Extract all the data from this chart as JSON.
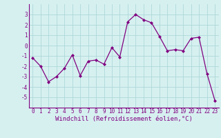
{
  "x": [
    0,
    1,
    2,
    3,
    4,
    5,
    6,
    7,
    8,
    9,
    10,
    11,
    12,
    13,
    14,
    15,
    16,
    17,
    18,
    19,
    20,
    21,
    22,
    23
  ],
  "y": [
    -1.2,
    -2.0,
    -3.5,
    -3.0,
    -2.2,
    -0.9,
    -2.9,
    -1.5,
    -1.4,
    -1.8,
    -0.2,
    -1.1,
    2.3,
    3.0,
    2.5,
    2.2,
    0.9,
    -0.5,
    -0.4,
    -0.5,
    0.7,
    0.8,
    -2.7,
    -5.3
  ],
  "line_color": "#800080",
  "marker": "D",
  "marker_size": 2,
  "bg_color": "#d6f0f0",
  "grid_color": "#aed8d8",
  "xlabel": "Windchill (Refroidissement éolien,°C)",
  "tick_color": "#800080",
  "ylim": [
    -6,
    4
  ],
  "yticks": [
    -5,
    -4,
    -3,
    -2,
    -1,
    0,
    1,
    2,
    3
  ],
  "xlim": [
    -0.5,
    23.5
  ],
  "xticks": [
    0,
    1,
    2,
    3,
    4,
    5,
    6,
    7,
    8,
    9,
    10,
    11,
    12,
    13,
    14,
    15,
    16,
    17,
    18,
    19,
    20,
    21,
    22,
    23
  ],
  "tick_fontsize": 5.5,
  "xlabel_fontsize": 6.5
}
